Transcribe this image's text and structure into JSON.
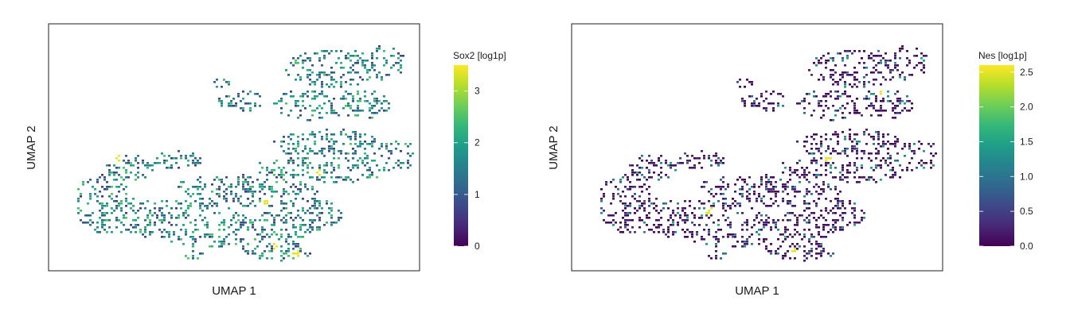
{
  "chart_data": [
    {
      "type": "scatter",
      "title": "",
      "xlabel": "UMAP 1",
      "ylabel": "UMAP 2",
      "colorbar": {
        "label": "Sox2 [log1p]",
        "min": 0,
        "max": 3.5,
        "ticks": [
          0,
          1,
          2,
          3
        ],
        "tick_labels": [
          "0",
          "1",
          "2",
          "3"
        ],
        "colormap": "viridis"
      },
      "grid": false,
      "expression": {
        "base": 1.6,
        "spread": 1.0,
        "hotspots": 5
      }
    },
    {
      "type": "scatter",
      "title": "",
      "xlabel": "UMAP 1",
      "ylabel": "UMAP 2",
      "colorbar": {
        "label": "Nes [log1p]",
        "min": 0,
        "max": 2.6,
        "ticks": [
          0,
          0.5,
          1,
          1.5,
          2,
          2.5
        ],
        "tick_labels": [
          "0.0",
          "0.5",
          "1.0",
          "1.5",
          "2.0",
          "2.5"
        ],
        "colormap": "viridis"
      },
      "grid": false,
      "expression": {
        "base": 0.15,
        "spread": 0.6,
        "hotspots": 4
      }
    }
  ],
  "colors": {
    "viridis": [
      "#440154",
      "#482878",
      "#3e4989",
      "#31688e",
      "#26828e",
      "#1f9e89",
      "#35b779",
      "#6ece58",
      "#b5de2b",
      "#fde725"
    ],
    "frame": "#333333",
    "background": "#ffffff"
  }
}
